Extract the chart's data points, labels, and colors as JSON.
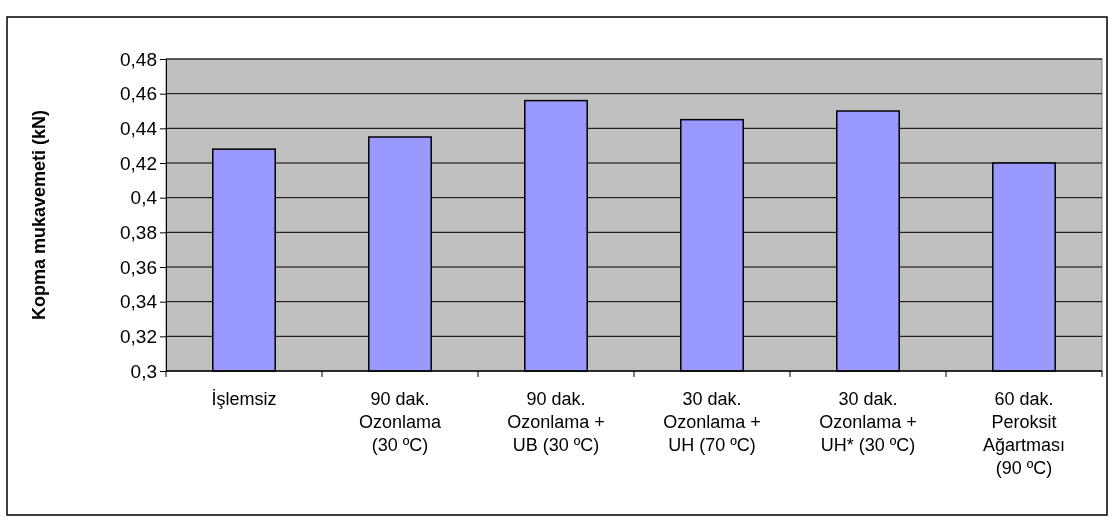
{
  "chart_data": {
    "type": "bar",
    "ylabel": "Kopma mukavemeti (kN)",
    "categories": [
      "İşlemsiz",
      "90 dak.\nOzonlama\n(30 ºC)",
      "90 dak.\nOzonlama +\nUB (30 ºC)",
      "30 dak.\nOzonlama +\nUH (70 ºC)",
      "30 dak.\nOzonlama +\nUH* (30 ºC)",
      "60 dak.\nPeroksit\nAğartması\n(90 ºC)"
    ],
    "values": [
      0.428,
      0.435,
      0.456,
      0.445,
      0.45,
      0.42
    ],
    "color": "#9999ff",
    "ylim": [
      0.3,
      0.48
    ],
    "yticks": [
      {
        "value": 0.3,
        "label": "0,3"
      },
      {
        "value": 0.32,
        "label": "0,32"
      },
      {
        "value": 0.34,
        "label": "0,34"
      },
      {
        "value": 0.36,
        "label": "0,36"
      },
      {
        "value": 0.38,
        "label": "0,38"
      },
      {
        "value": 0.4,
        "label": "0,4"
      },
      {
        "value": 0.42,
        "label": "0,42"
      },
      {
        "value": 0.44,
        "label": "0,44"
      },
      {
        "value": 0.46,
        "label": "0,46"
      },
      {
        "value": 0.48,
        "label": "0,48"
      }
    ],
    "grid": "y"
  }
}
